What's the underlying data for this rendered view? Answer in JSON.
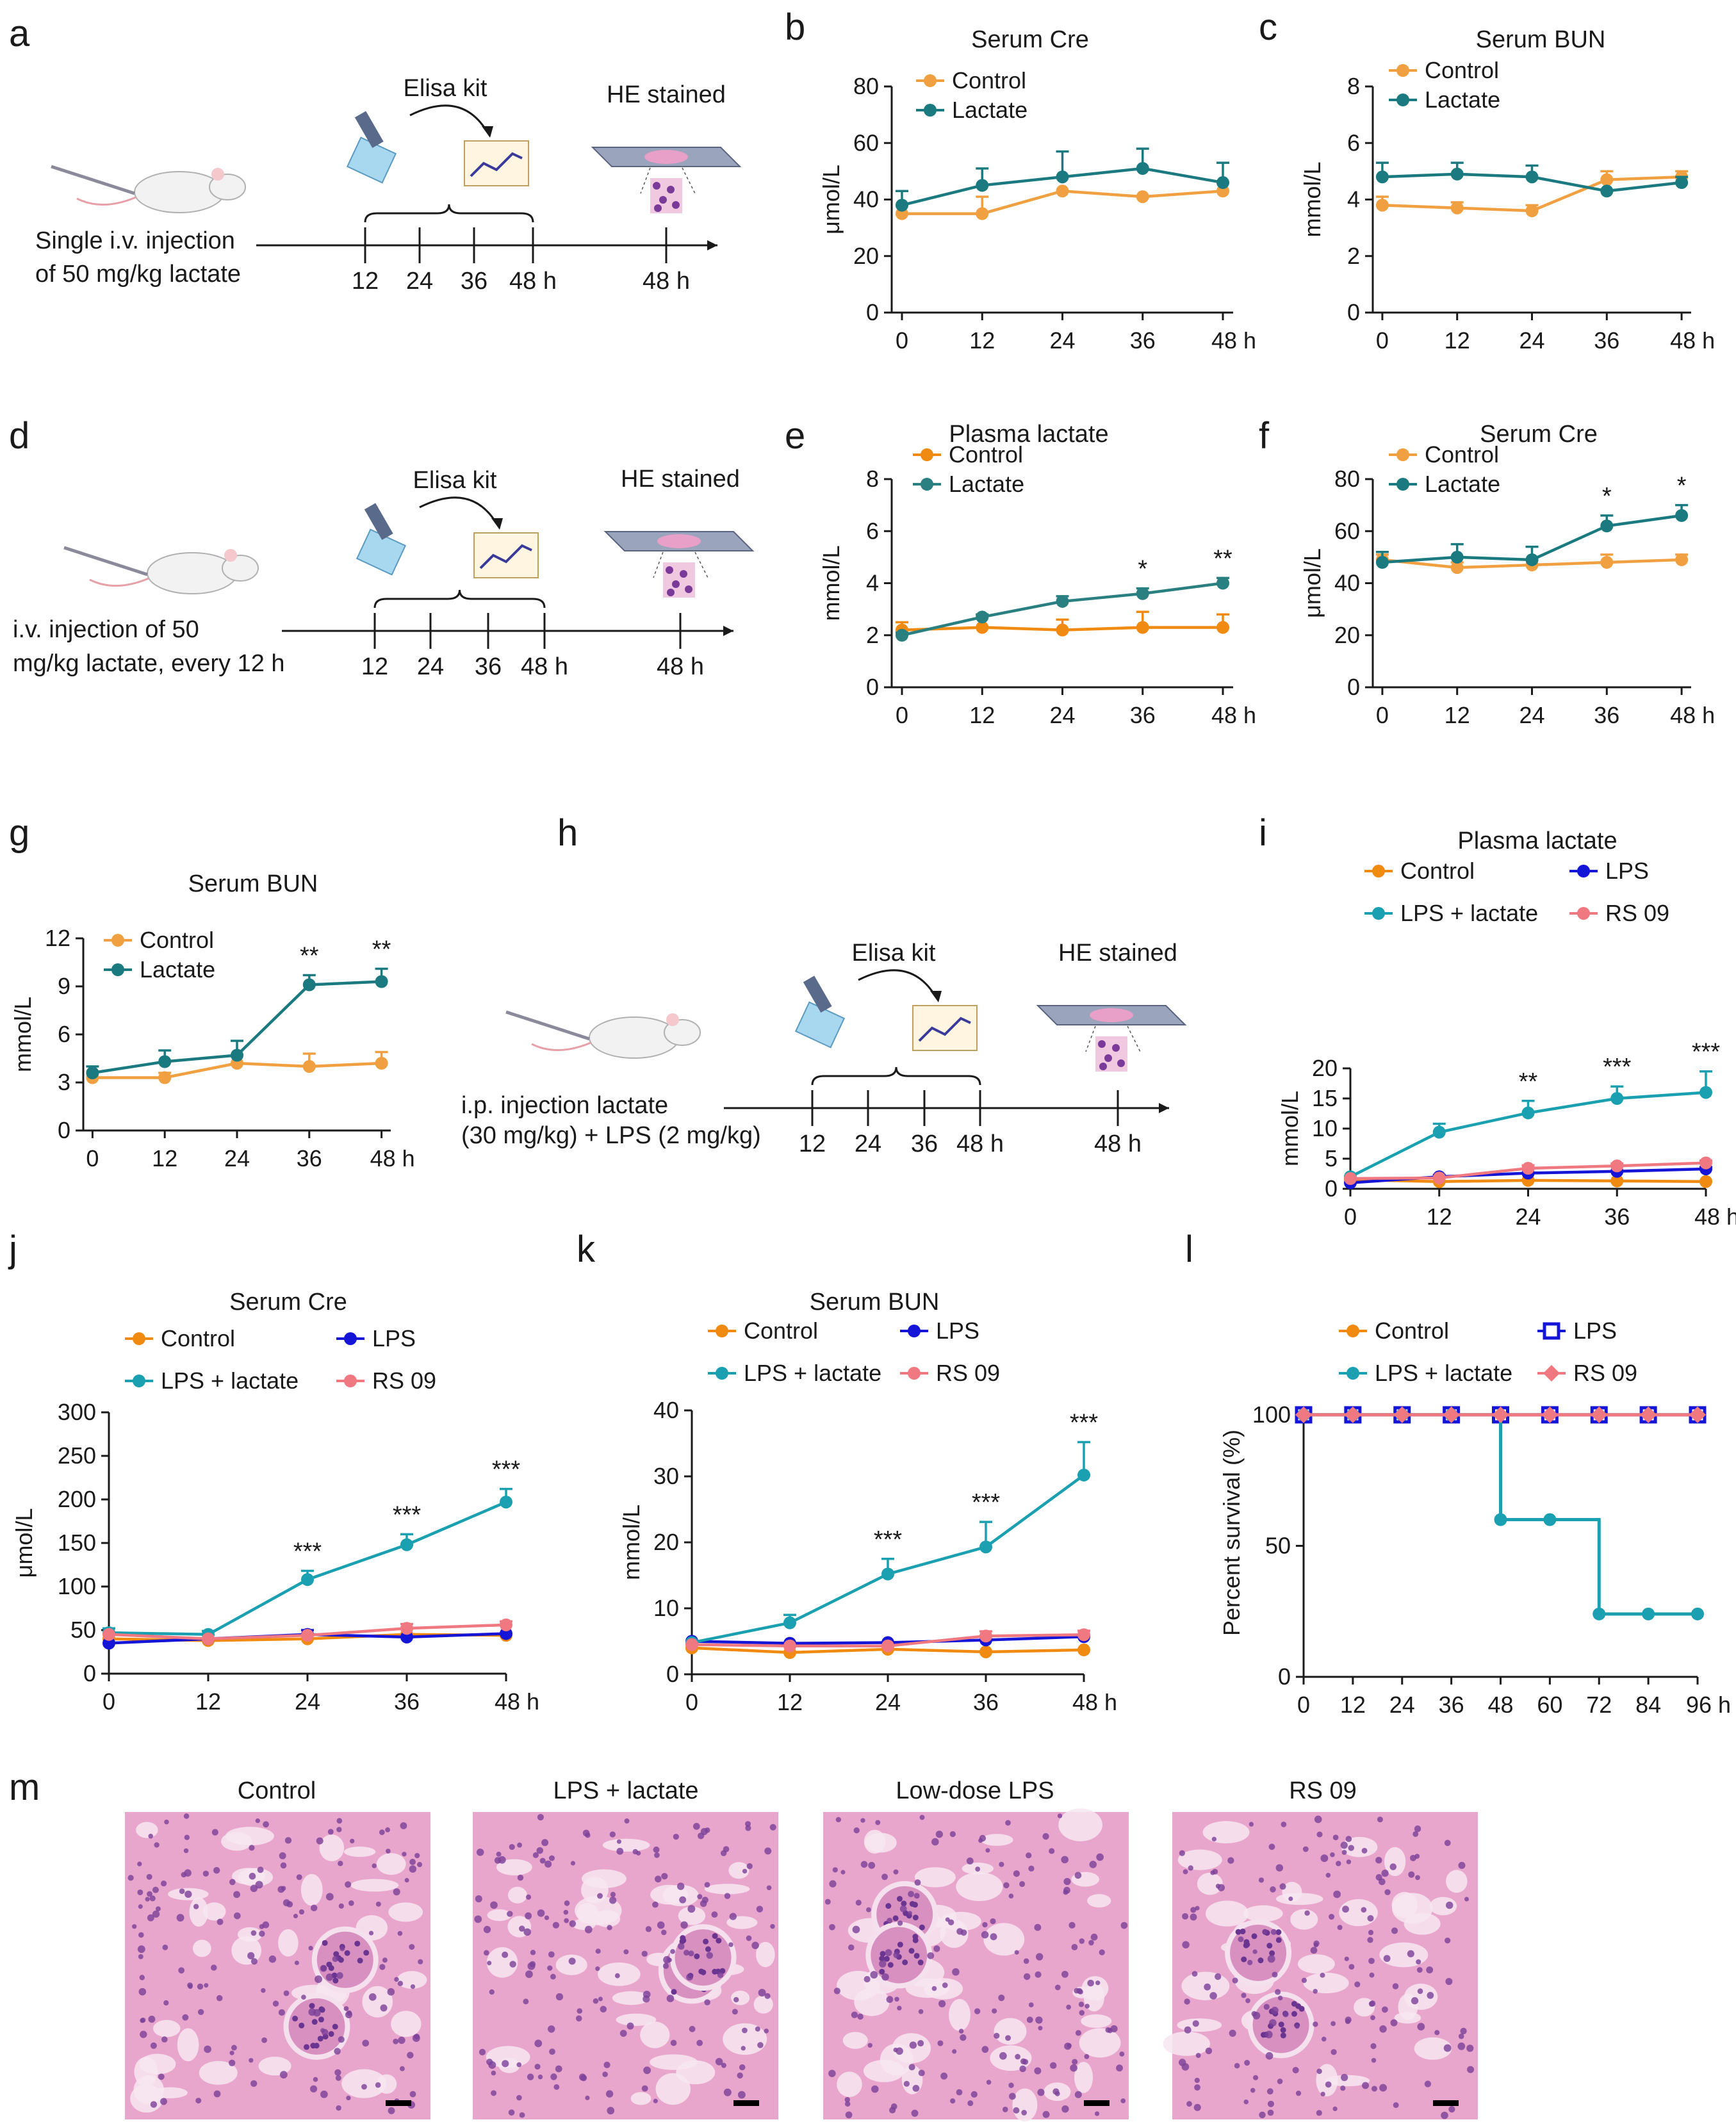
{
  "panel_labels": [
    "a",
    "b",
    "c",
    "d",
    "e",
    "f",
    "g",
    "h",
    "i",
    "j",
    "k",
    "l",
    "m"
  ],
  "schematics": [
    {
      "id": "a",
      "injection_text": [
        "Single i.v. injection",
        "of 50 mg/kg lactate"
      ],
      "elisa": "Elisa kit",
      "he": "HE stained",
      "ticks": [
        "12",
        "24",
        "36",
        "48 h"
      ],
      "he_tick": "48 h"
    },
    {
      "id": "d",
      "injection_text": [
        "i.v. injection of 50",
        "mg/kg lactate, every 12 h"
      ],
      "elisa": "Elisa kit",
      "he": "HE stained",
      "ticks": [
        "12",
        "24",
        "36",
        "48 h"
      ],
      "he_tick": "48 h"
    },
    {
      "id": "h",
      "injection_text": [
        "i.p. injection lactate",
        "(30 mg/kg) + LPS (2 mg/kg)"
      ],
      "elisa": "Elisa kit",
      "he": "HE stained",
      "ticks": [
        "12",
        "24",
        "36",
        "48 h"
      ],
      "he_tick": "48 h"
    }
  ],
  "colors": {
    "control_light": "#f0a040",
    "lactate_teal": "#1a7a80",
    "control_orange": "#f08a10",
    "lps_blue": "#1515d8",
    "lps_lactate": "#1aa0b0",
    "rs09": "#f07880",
    "he_pink": "#e8a0c8",
    "he_purple": "#7a3a9a"
  },
  "chart_data": [
    {
      "id": "b",
      "type": "line",
      "title": "Serum Cre",
      "ylabel": "μmol/L",
      "x": [
        0,
        12,
        24,
        36,
        48
      ],
      "xticks": [
        "0",
        "12",
        "24",
        "36",
        "48 h"
      ],
      "ylim": [
        0,
        80
      ],
      "yticks": [
        0,
        20,
        40,
        60,
        80
      ],
      "legend": "top-left",
      "series": [
        {
          "name": "Control",
          "color": "#f0a040",
          "values": [
            35,
            35,
            43,
            41,
            43
          ],
          "err": [
            0,
            6,
            0,
            0,
            0
          ]
        },
        {
          "name": "Lactate",
          "color": "#1a7a80",
          "values": [
            38,
            45,
            48,
            51,
            46
          ],
          "err": [
            5,
            6,
            9,
            7,
            7
          ]
        }
      ],
      "sig": []
    },
    {
      "id": "c",
      "type": "line",
      "title": "Serum BUN",
      "ylabel": "mmol/L",
      "x": [
        0,
        12,
        24,
        36,
        48
      ],
      "xticks": [
        "0",
        "12",
        "24",
        "36",
        "48 h"
      ],
      "ylim": [
        0,
        8
      ],
      "yticks": [
        0,
        2,
        4,
        6,
        8
      ],
      "legend": "top-left",
      "series": [
        {
          "name": "Control",
          "color": "#f0a040",
          "values": [
            3.8,
            3.7,
            3.6,
            4.7,
            4.8
          ],
          "err": [
            0.3,
            0.2,
            0.2,
            0.3,
            0.2
          ]
        },
        {
          "name": "Lactate",
          "color": "#1a7a80",
          "values": [
            4.8,
            4.9,
            4.8,
            4.3,
            4.6
          ],
          "err": [
            0.5,
            0.4,
            0.4,
            0,
            0.2
          ]
        }
      ],
      "sig": []
    },
    {
      "id": "e",
      "type": "line",
      "title": "Plasma lactate",
      "ylabel": "mmol/L",
      "x": [
        0,
        12,
        24,
        36,
        48
      ],
      "xticks": [
        "0",
        "12",
        "24",
        "36",
        "48 h"
      ],
      "ylim": [
        0,
        8
      ],
      "yticks": [
        0,
        2,
        4,
        6,
        8
      ],
      "legend": "top-left",
      "series": [
        {
          "name": "Control",
          "color": "#f08a10",
          "values": [
            2.2,
            2.3,
            2.2,
            2.3,
            2.3
          ],
          "err": [
            0.3,
            0.5,
            0.4,
            0.6,
            0.5
          ]
        },
        {
          "name": "Lactate",
          "color": "#2a8080",
          "values": [
            2.0,
            2.7,
            3.3,
            3.6,
            4.0
          ],
          "err": [
            0.1,
            0.1,
            0.2,
            0.2,
            0.2
          ]
        }
      ],
      "sig": [
        {
          "x": 36,
          "label": "*"
        },
        {
          "x": 48,
          "label": "**"
        }
      ]
    },
    {
      "id": "f",
      "type": "line",
      "title": "Serum Cre",
      "ylabel": "μmol/L",
      "x": [
        0,
        12,
        24,
        36,
        48
      ],
      "xticks": [
        "0",
        "12",
        "24",
        "36",
        "48 h"
      ],
      "ylim": [
        0,
        80
      ],
      "yticks": [
        0,
        20,
        40,
        60,
        80
      ],
      "legend": "top-left",
      "series": [
        {
          "name": "Control",
          "color": "#f0a040",
          "values": [
            49,
            46,
            47,
            48,
            49
          ],
          "err": [
            2,
            2,
            2,
            3,
            2
          ]
        },
        {
          "name": "Lactate",
          "color": "#1a7a80",
          "values": [
            48,
            50,
            49,
            62,
            66
          ],
          "err": [
            4,
            5,
            5,
            4,
            4
          ]
        }
      ],
      "sig": [
        {
          "x": 36,
          "label": "*"
        },
        {
          "x": 48,
          "label": "*"
        }
      ]
    },
    {
      "id": "g",
      "type": "line",
      "title": "Serum BUN",
      "ylabel": "mmol/L",
      "x": [
        0,
        12,
        24,
        36,
        48
      ],
      "xticks": [
        "0",
        "12",
        "24",
        "36",
        "48 h"
      ],
      "ylim": [
        0,
        12
      ],
      "yticks": [
        0,
        3,
        6,
        9,
        12
      ],
      "legend": "top-left",
      "series": [
        {
          "name": "Control",
          "color": "#f0a040",
          "values": [
            3.3,
            3.3,
            4.2,
            4.0,
            4.2
          ],
          "err": [
            0,
            0.3,
            0,
            0.8,
            0.7
          ]
        },
        {
          "name": "Lactate",
          "color": "#1a7a80",
          "values": [
            3.6,
            4.3,
            4.7,
            9.1,
            9.3
          ],
          "err": [
            0.4,
            0.7,
            0.9,
            0.6,
            0.8
          ]
        }
      ],
      "sig": [
        {
          "x": 36,
          "label": "**"
        },
        {
          "x": 48,
          "label": "**"
        }
      ]
    },
    {
      "id": "i",
      "type": "line",
      "title": "Plasma lactate",
      "ylabel": "mmol/L",
      "x": [
        0,
        12,
        24,
        36,
        48
      ],
      "xticks": [
        "0",
        "12",
        "24",
        "36",
        "48 h"
      ],
      "ylim": [
        0,
        20
      ],
      "yticks": [
        0,
        5,
        10,
        15,
        20
      ],
      "legend": "top",
      "series": [
        {
          "name": "Control",
          "color": "#f08a10",
          "values": [
            1.5,
            1.2,
            1.4,
            1.3,
            1.2
          ],
          "err": [
            0,
            0,
            0,
            0,
            0
          ]
        },
        {
          "name": "LPS",
          "color": "#1515d8",
          "values": [
            1.0,
            2.0,
            2.6,
            2.9,
            3.3
          ],
          "err": [
            0,
            0.3,
            0,
            0,
            0.3
          ]
        },
        {
          "name": "LPS + lactate",
          "color": "#1aa0b0",
          "values": [
            2.0,
            9.4,
            12.6,
            15.0,
            16.0
          ],
          "err": [
            0,
            1.4,
            2.0,
            2.0,
            3.5
          ]
        },
        {
          "name": "RS 09",
          "color": "#f07880",
          "values": [
            1.7,
            1.8,
            3.4,
            3.8,
            4.3
          ],
          "err": [
            0,
            0,
            0.5,
            0.4,
            0.4
          ]
        }
      ],
      "sig": [
        {
          "x": 24,
          "label": "**"
        },
        {
          "x": 36,
          "label": "***"
        },
        {
          "x": 48,
          "label": "***"
        }
      ]
    },
    {
      "id": "j",
      "type": "line",
      "title": "Serum Cre",
      "ylabel": "μmol/L",
      "x": [
        0,
        12,
        24,
        36,
        48
      ],
      "xticks": [
        "0",
        "12",
        "24",
        "36",
        "48 h"
      ],
      "ylim": [
        0,
        300
      ],
      "yticks": [
        0,
        50,
        100,
        150,
        200,
        250,
        300
      ],
      "legend": "top",
      "series": [
        {
          "name": "Control",
          "color": "#f08a10",
          "values": [
            40,
            38,
            40,
            45,
            44
          ],
          "err": [
            0,
            0,
            0,
            0,
            0
          ]
        },
        {
          "name": "LPS",
          "color": "#1515d8",
          "values": [
            35,
            40,
            45,
            42,
            46
          ],
          "err": [
            0,
            0,
            5,
            0,
            0
          ]
        },
        {
          "name": "LPS + lactate",
          "color": "#1aa0b0",
          "values": [
            47,
            45,
            108,
            148,
            197
          ],
          "err": [
            5,
            4,
            10,
            12,
            15
          ]
        },
        {
          "name": "RS 09",
          "color": "#f07880",
          "values": [
            45,
            40,
            44,
            52,
            56
          ],
          "err": [
            0,
            0,
            0,
            5,
            4
          ]
        }
      ],
      "sig": [
        {
          "x": 24,
          "label": "***"
        },
        {
          "x": 36,
          "label": "***"
        },
        {
          "x": 48,
          "label": "***"
        }
      ]
    },
    {
      "id": "k",
      "type": "line",
      "title": "Serum BUN",
      "ylabel": "mmol/L",
      "x": [
        0,
        12,
        24,
        36,
        48
      ],
      "xticks": [
        "0",
        "12",
        "24",
        "36",
        "48 h"
      ],
      "ylim": [
        0,
        40
      ],
      "yticks": [
        0,
        10,
        20,
        30,
        40
      ],
      "legend": "top",
      "series": [
        {
          "name": "Control",
          "color": "#f08a10",
          "values": [
            4.0,
            3.3,
            3.8,
            3.4,
            3.7
          ],
          "err": [
            0,
            0,
            0,
            0,
            0
          ]
        },
        {
          "name": "LPS",
          "color": "#1515d8",
          "values": [
            5.0,
            4.7,
            4.8,
            5.2,
            5.7
          ],
          "err": [
            0,
            0,
            0,
            0,
            0
          ]
        },
        {
          "name": "LPS + lactate",
          "color": "#1aa0b0",
          "values": [
            4.8,
            7.8,
            15.2,
            19.3,
            30.2
          ],
          "err": [
            0,
            1.2,
            2.3,
            3.8,
            5.0
          ]
        },
        {
          "name": "RS 09",
          "color": "#f07880",
          "values": [
            4.5,
            4.3,
            4.3,
            5.8,
            6.0
          ],
          "err": [
            0,
            0,
            0,
            0.7,
            0.6
          ]
        }
      ],
      "sig": [
        {
          "x": 24,
          "label": "***"
        },
        {
          "x": 36,
          "label": "***"
        },
        {
          "x": 48,
          "label": "***"
        }
      ]
    },
    {
      "id": "l",
      "type": "step",
      "title": "",
      "ylabel": "Percent survival (%)",
      "x": [
        0,
        12,
        24,
        36,
        48,
        60,
        72,
        84,
        96
      ],
      "xticks": [
        "0",
        "12",
        "24",
        "36",
        "48",
        "60",
        "72",
        "84",
        "96 h"
      ],
      "ylim": [
        0,
        110
      ],
      "yticks": [
        0,
        50,
        100
      ],
      "legend": "top",
      "series": [
        {
          "name": "Control",
          "color": "#f08a10",
          "marker": "circle",
          "values": [
            100,
            100,
            100,
            100,
            100,
            100,
            100,
            100,
            100
          ]
        },
        {
          "name": "LPS",
          "color": "#1515d8",
          "marker": "open-square",
          "values": [
            100,
            100,
            100,
            100,
            100,
            100,
            100,
            100,
            100
          ]
        },
        {
          "name": "LPS + lactate",
          "color": "#1aa0b0",
          "marker": "circle",
          "values": [
            100,
            100,
            100,
            100,
            60,
            60,
            24,
            24,
            24
          ]
        },
        {
          "name": "RS 09",
          "color": "#f07880",
          "marker": "diamond",
          "values": [
            100,
            100,
            100,
            100,
            100,
            100,
            100,
            100,
            100
          ]
        }
      ],
      "sig": []
    }
  ],
  "histology": {
    "titles": [
      "Control",
      "LPS + lactate",
      "Low-dose LPS",
      "RS 09"
    ]
  }
}
